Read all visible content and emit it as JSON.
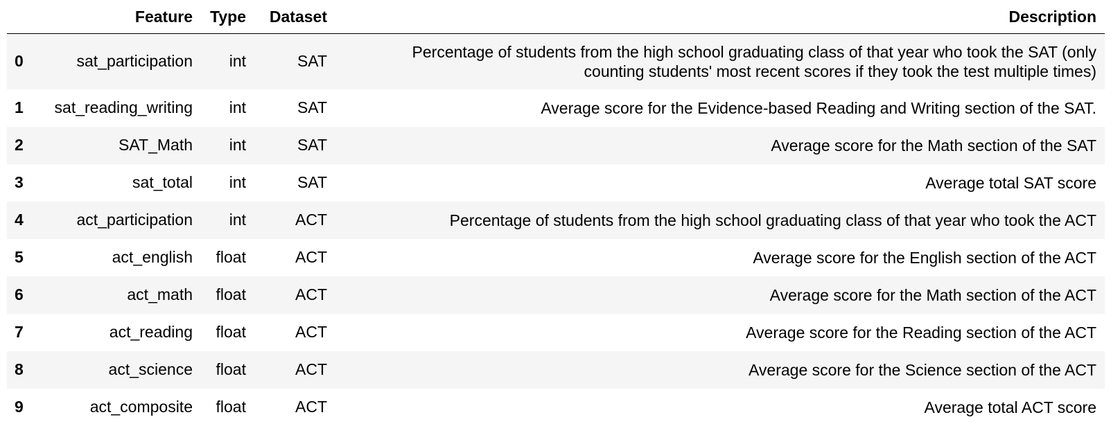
{
  "table": {
    "columns": [
      "Feature",
      "Type",
      "Dataset",
      "Description"
    ],
    "rows": [
      {
        "index": "0",
        "feature": "sat_participation",
        "type": "int",
        "dataset": "SAT",
        "description": [
          "Percentage of students from the high school graduating class of that year who took the SAT (only",
          "counting students' most recent scores if they took the test multiple times)"
        ]
      },
      {
        "index": "1",
        "feature": "sat_reading_writing",
        "type": "int",
        "dataset": "SAT",
        "description": [
          "Average score for the Evidence-based Reading and Writing section of the SAT."
        ]
      },
      {
        "index": "2",
        "feature": "SAT_Math",
        "type": "int",
        "dataset": "SAT",
        "description": [
          "Average score for the Math section of the SAT"
        ]
      },
      {
        "index": "3",
        "feature": "sat_total",
        "type": "int",
        "dataset": "SAT",
        "description": [
          "Average total SAT score"
        ]
      },
      {
        "index": "4",
        "feature": "act_participation",
        "type": "int",
        "dataset": "ACT",
        "description": [
          "Percentage of students from the high school graduating class of that year who took the ACT"
        ]
      },
      {
        "index": "5",
        "feature": "act_english",
        "type": "float",
        "dataset": "ACT",
        "description": [
          "Average score for the English section of the ACT"
        ]
      },
      {
        "index": "6",
        "feature": "act_math",
        "type": "float",
        "dataset": "ACT",
        "description": [
          "Average score for the Math section of the ACT"
        ]
      },
      {
        "index": "7",
        "feature": "act_reading",
        "type": "float",
        "dataset": "ACT",
        "description": [
          "Average score for the Reading section of the ACT"
        ]
      },
      {
        "index": "8",
        "feature": "act_science",
        "type": "float",
        "dataset": "ACT",
        "description": [
          "Average score for the Science section of the ACT"
        ]
      },
      {
        "index": "9",
        "feature": "act_composite",
        "type": "float",
        "dataset": "ACT",
        "description": [
          "Average total ACT score"
        ]
      }
    ]
  }
}
